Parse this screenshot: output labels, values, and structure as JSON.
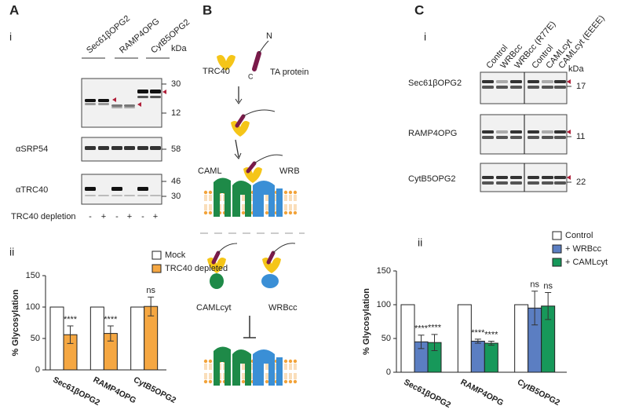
{
  "panel_a": {
    "label": "A",
    "sub_i": "i",
    "sub_ii": "ii",
    "lanes": [
      "Sec61βOPG2",
      "RAMP4OPG",
      "CytB5OPG2"
    ],
    "kda": "kDa",
    "blot_markers": [
      "30",
      "12"
    ],
    "srp54": {
      "label": "αSRP54",
      "markers": [
        "58"
      ]
    },
    "trc40": {
      "label": "αTRC40",
      "markers": [
        "46",
        "30"
      ]
    },
    "depletion": {
      "label": "TRC40 depletion",
      "signs": [
        "-",
        "+",
        "-",
        "+",
        "-",
        "+"
      ]
    }
  },
  "panel_b": {
    "label": "B",
    "trc40": "TRC40",
    "n_term": "N",
    "c_term": "C",
    "ta_protein": "TA protein",
    "caml": "CAML",
    "wrb": "WRB",
    "camlcyt": "CAMLcyt",
    "wrbcc": "WRBcc"
  },
  "panel_c": {
    "label": "C",
    "sub_i": "i",
    "sub_ii": "ii",
    "lanes": [
      "Control",
      "WRBcc",
      "WRBcc (R77E)",
      "Control",
      "CAMLcyt",
      "CAMLcyt (EEEE)"
    ],
    "kda": "kDa",
    "blots": [
      {
        "label": "Sec61βOPG2",
        "marker": "17"
      },
      {
        "label": "RAMP4OPG",
        "marker": "11"
      },
      {
        "label": "CytB5OPG2",
        "marker": "22"
      }
    ]
  },
  "chart_data": [
    {
      "type": "bar",
      "y_label": "% Glycosylation",
      "categories": [
        "Sec61βOPG2",
        "RAMP4OPG",
        "CytB5OPG2"
      ],
      "ylim": [
        0,
        150
      ],
      "yticks": [
        0,
        50,
        100,
        150
      ],
      "legend": "top-right",
      "series": [
        {
          "name": "Mock",
          "color": "#ffffff",
          "values": [
            100,
            100,
            100
          ]
        },
        {
          "name": "TRC40 depleted",
          "color": "#f5a742",
          "values": [
            56,
            58,
            101
          ],
          "errors": [
            14,
            12,
            15
          ],
          "significance": [
            "****",
            "****",
            "ns"
          ]
        }
      ]
    },
    {
      "type": "bar",
      "y_label": "% Glycosylation",
      "categories": [
        "Sec61βOPG2",
        "RAMP4OPG",
        "CytB5OPG2"
      ],
      "ylim": [
        0,
        150
      ],
      "yticks": [
        0,
        50,
        100,
        150
      ],
      "legend": "top-right",
      "series": [
        {
          "name": "Control",
          "color": "#ffffff",
          "values": [
            100,
            100,
            100
          ]
        },
        {
          "name": "+ WRBcc",
          "color": "#5b7ec2",
          "values": [
            45,
            46,
            95
          ],
          "errors": [
            10,
            3,
            25
          ],
          "significance": [
            "****",
            "****",
            "ns"
          ]
        },
        {
          "name": "+ CAMLcyt",
          "color": "#17985a",
          "values": [
            44,
            43,
            98
          ],
          "errors": [
            12,
            3,
            20
          ],
          "significance": [
            "****",
            "****",
            "ns"
          ]
        }
      ]
    }
  ]
}
